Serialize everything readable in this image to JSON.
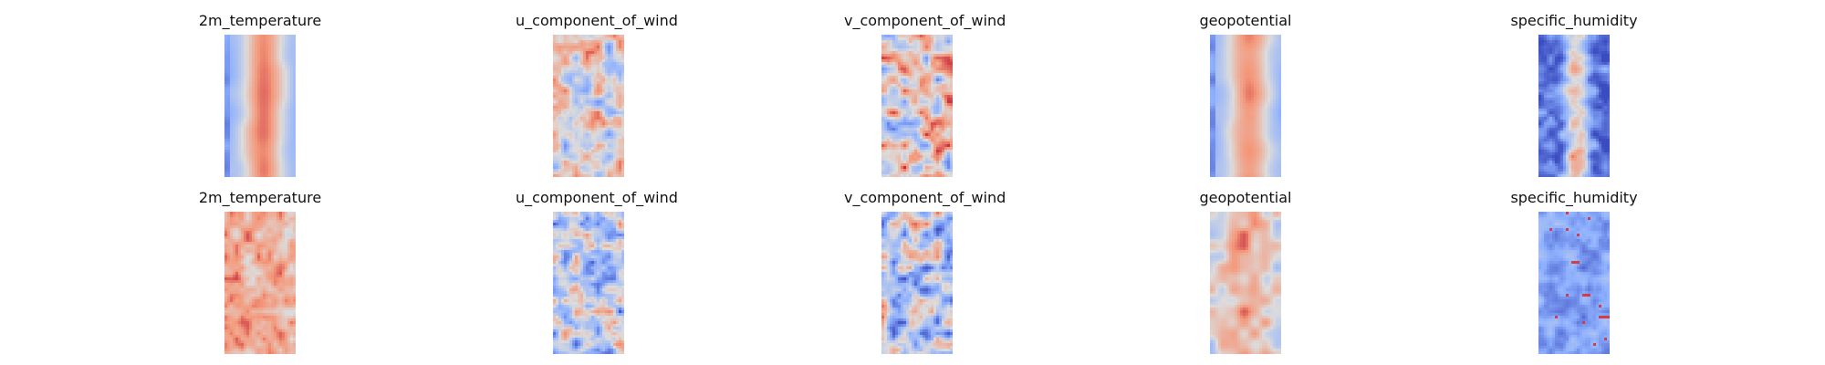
{
  "chart_data": {
    "type": "heatmap",
    "colormap": "coolwarm",
    "colormap_stops": [
      "#3b4cc0",
      "#8db0fe",
      "#dddcdc",
      "#f4987a",
      "#b40426"
    ],
    "layout": "2 rows x 5 columns",
    "rows": [
      {
        "panels": [
          {
            "title": "2m_temperature",
            "pattern": "warm-center-band",
            "intensity": 0.82
          },
          {
            "title": "u_component_of_wind",
            "pattern": "mixed-light",
            "intensity": 0.4
          },
          {
            "title": "v_component_of_wind",
            "pattern": "mixed-warm",
            "intensity": 0.52
          },
          {
            "title": "geopotential",
            "pattern": "warm-center-band",
            "intensity": 0.78
          },
          {
            "title": "specific_humidity",
            "pattern": "cold-edges-warm-core",
            "intensity": 0.62
          }
        ]
      },
      {
        "panels": [
          {
            "title": "2m_temperature",
            "pattern": "mottled-warm",
            "intensity": 0.62
          },
          {
            "title": "u_component_of_wind",
            "pattern": "mixed-cool",
            "intensity": 0.35
          },
          {
            "title": "v_component_of_wind",
            "pattern": "mixed-cool",
            "intensity": 0.4
          },
          {
            "title": "geopotential",
            "pattern": "mottled-warm-band",
            "intensity": 0.7
          },
          {
            "title": "specific_humidity",
            "pattern": "cool-field",
            "intensity": 0.28
          }
        ]
      }
    ]
  }
}
